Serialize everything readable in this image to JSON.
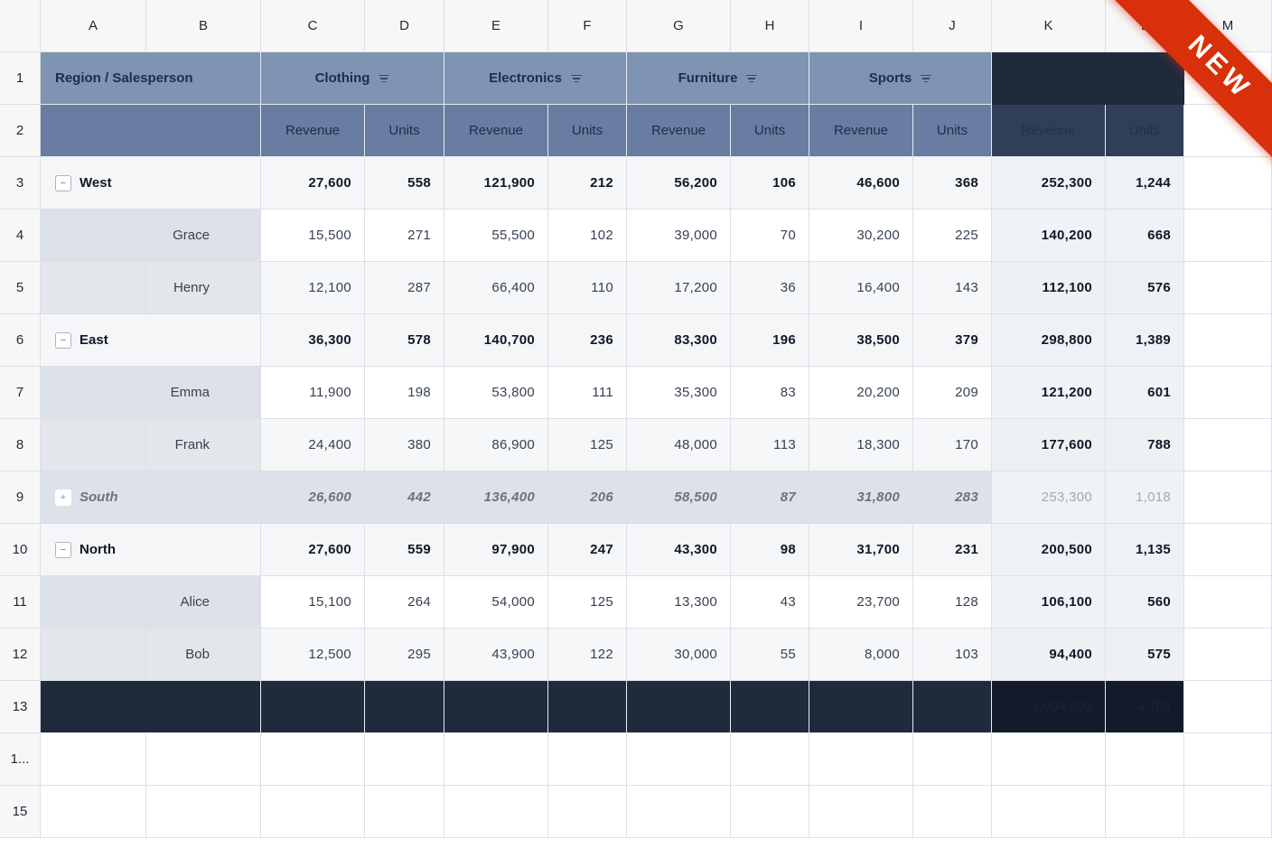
{
  "columns": [
    "A",
    "B",
    "C",
    "D",
    "E",
    "F",
    "G",
    "H",
    "I",
    "J",
    "K",
    "L",
    "M"
  ],
  "row_numbers": [
    "1",
    "2",
    "3",
    "4",
    "5",
    "6",
    "7",
    "8",
    "9",
    "10",
    "11",
    "12",
    "13",
    "1...",
    "15"
  ],
  "header": {
    "row_label": "Region / Salesperson",
    "categories": [
      {
        "name": "Clothing",
        "icon": "filter-icon"
      },
      {
        "name": "Electronics",
        "icon": "filter-icon"
      },
      {
        "name": "Furniture",
        "icon": "filter-icon"
      },
      {
        "name": "Sports",
        "icon": "filter-icon"
      }
    ],
    "measure_revenue": "Revenue",
    "measure_units": "Units",
    "total_revenue": "Revenue",
    "total_units": "Units"
  },
  "ribbon": {
    "label": "NEW",
    "color": "#d8300a"
  },
  "rows": [
    {
      "type": "group",
      "label": "West",
      "toggle": "−",
      "values": [
        "27,600",
        "558",
        "121,900",
        "212",
        "56,200",
        "106",
        "46,600",
        "368"
      ],
      "total_revenue": "252,300",
      "total_units": "1,244"
    },
    {
      "type": "detail",
      "label": "Grace",
      "values": [
        "15,500",
        "271",
        "55,500",
        "102",
        "39,000",
        "70",
        "30,200",
        "225"
      ],
      "total_revenue": "140,200",
      "total_units": "668"
    },
    {
      "type": "detail",
      "label": "Henry",
      "values": [
        "12,100",
        "287",
        "66,400",
        "110",
        "17,200",
        "36",
        "16,400",
        "143"
      ],
      "total_revenue": "112,100",
      "total_units": "576"
    },
    {
      "type": "group",
      "label": "East",
      "toggle": "−",
      "values": [
        "36,300",
        "578",
        "140,700",
        "236",
        "83,300",
        "196",
        "38,500",
        "379"
      ],
      "total_revenue": "298,800",
      "total_units": "1,389"
    },
    {
      "type": "detail",
      "label": "Emma",
      "values": [
        "11,900",
        "198",
        "53,800",
        "111",
        "35,300",
        "83",
        "20,200",
        "209"
      ],
      "total_revenue": "121,200",
      "total_units": "601"
    },
    {
      "type": "detail",
      "label": "Frank",
      "values": [
        "24,400",
        "380",
        "86,900",
        "125",
        "48,000",
        "113",
        "18,300",
        "170"
      ],
      "total_revenue": "177,600",
      "total_units": "788"
    },
    {
      "type": "collapsed",
      "label": "South",
      "toggle": "+",
      "values": [
        "26,600",
        "442",
        "136,400",
        "206",
        "58,500",
        "87",
        "31,800",
        "283"
      ],
      "total_revenue": "253,300",
      "total_units": "1,018"
    },
    {
      "type": "group",
      "label": "North",
      "toggle": "−",
      "values": [
        "27,600",
        "559",
        "97,900",
        "247",
        "43,300",
        "98",
        "31,700",
        "231"
      ],
      "total_revenue": "200,500",
      "total_units": "1,135"
    },
    {
      "type": "detail",
      "label": "Alice",
      "values": [
        "15,100",
        "264",
        "54,000",
        "125",
        "13,300",
        "43",
        "23,700",
        "128"
      ],
      "total_revenue": "106,100",
      "total_units": "560"
    },
    {
      "type": "detail",
      "label": "Bob",
      "values": [
        "12,500",
        "295",
        "43,900",
        "122",
        "30,000",
        "55",
        "8,000",
        "103"
      ],
      "total_revenue": "94,400",
      "total_units": "575"
    }
  ],
  "grand_total": {
    "total_revenue": "1,004,900",
    "total_units": "4,786"
  }
}
